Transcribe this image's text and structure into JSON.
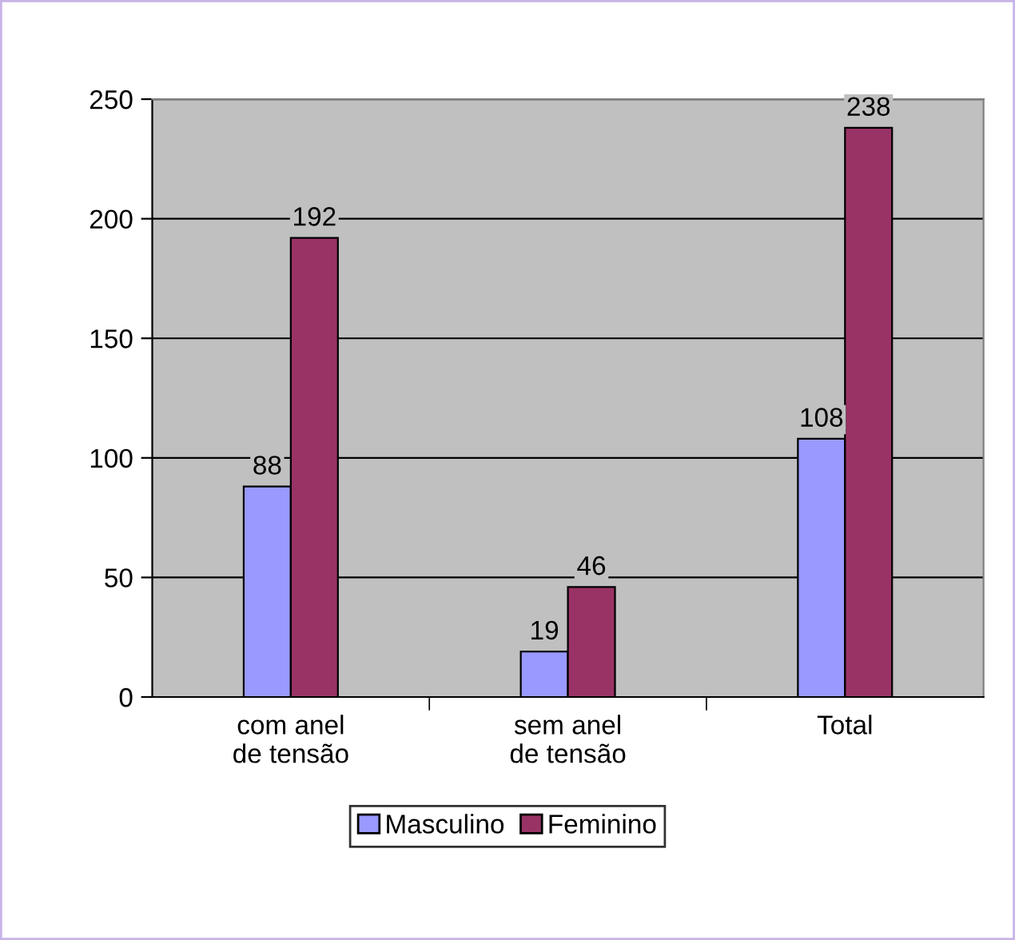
{
  "chart_data": {
    "type": "bar",
    "categories": [
      "com anel\nde tensão",
      "sem anel\nde tensão",
      "Total"
    ],
    "series": [
      {
        "name": "Masculino",
        "color": "#9999ff",
        "values": [
          88,
          19,
          108
        ]
      },
      {
        "name": "Feminino",
        "color": "#993366",
        "values": [
          192,
          46,
          238
        ]
      }
    ],
    "ylim": [
      0,
      250
    ],
    "yticks": [
      0,
      50,
      100,
      150,
      200,
      250
    ],
    "grid": "y",
    "legend": "bottom",
    "data_labels": true
  }
}
